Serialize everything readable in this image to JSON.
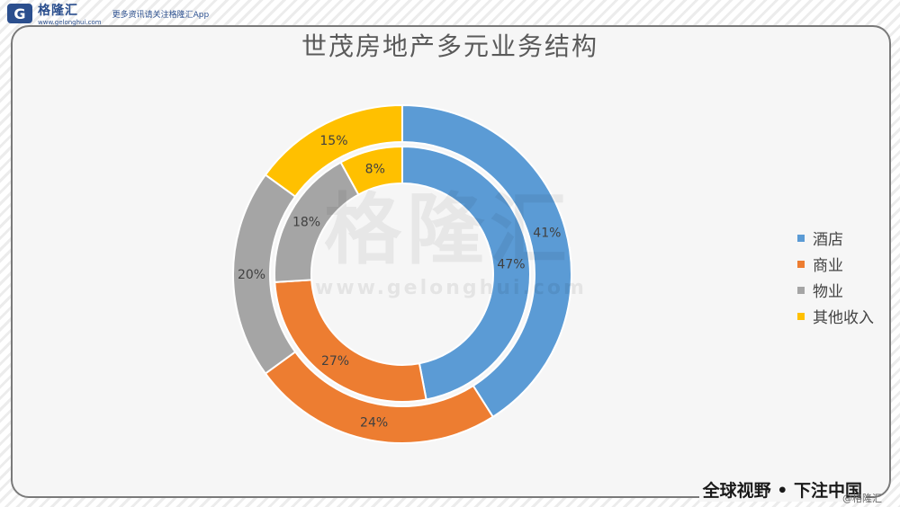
{
  "header": {
    "logo_mark": "G",
    "logo_name": "格隆汇",
    "logo_url": "www.gelonghui.com",
    "tagline": "更多资讯请关注格隆汇App"
  },
  "watermark": {
    "name": "格隆汇",
    "url": "www.gelonghui.com"
  },
  "footer": {
    "slogan": "全球视野 • 下注中国",
    "copyright": "@格隆汇"
  },
  "chart_data": {
    "type": "donut",
    "title": "世茂房地产多元业务结构",
    "categories": [
      "酒店",
      "商业",
      "物业",
      "其他收入"
    ],
    "colors": [
      "#5b9bd5",
      "#ed7d31",
      "#a5a5a5",
      "#ffc000"
    ],
    "series": [
      {
        "ring": "outer",
        "values": [
          41,
          24,
          20,
          15
        ]
      },
      {
        "ring": "inner",
        "values": [
          47,
          27,
          18,
          8
        ]
      }
    ],
    "legend_position": "right"
  }
}
